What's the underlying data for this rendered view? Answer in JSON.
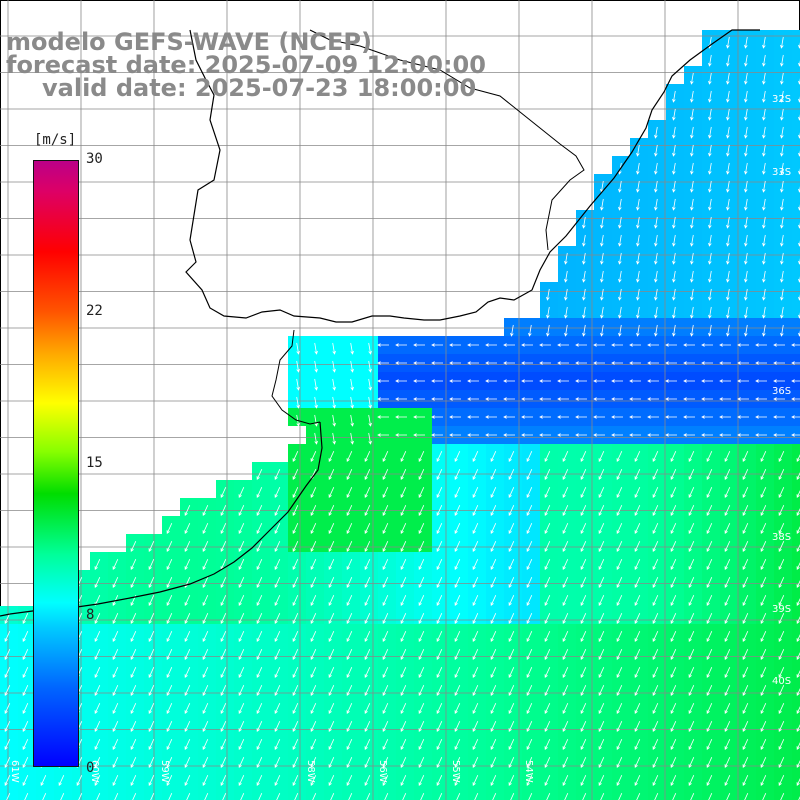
{
  "title": {
    "line1": "modelo GEFS-WAVE (NCEP)",
    "line2": "forecast date: 2025-07-09 12:00:00",
    "line3": "valid date: 2025-07-23 18:00:00"
  },
  "colorbar": {
    "unit": "[m/s]",
    "ticks": [
      "30",
      "22",
      "15",
      "8",
      "0"
    ],
    "min": 0,
    "max": 30
  },
  "map": {
    "lat_labels": [
      "32S",
      "33S",
      "36S",
      "38S",
      "39S",
      "40S"
    ],
    "lon_labels": [
      "61W",
      "60W",
      "59W",
      "58W",
      "56W",
      "55W",
      "54W"
    ]
  },
  "colors": {
    "title": "#8a8a8a",
    "grid": "#888888",
    "coast": "#000000",
    "arrow": "#ffffff"
  }
}
